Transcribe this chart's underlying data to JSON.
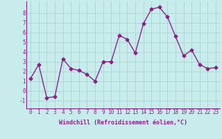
{
  "x": [
    0,
    1,
    2,
    3,
    4,
    5,
    6,
    7,
    8,
    9,
    10,
    11,
    12,
    13,
    14,
    15,
    16,
    17,
    18,
    19,
    20,
    21,
    22,
    23
  ],
  "y": [
    1.3,
    2.7,
    -0.7,
    -0.6,
    3.3,
    2.3,
    2.1,
    1.7,
    1.0,
    3.0,
    3.0,
    5.7,
    5.3,
    3.9,
    6.9,
    8.4,
    8.6,
    7.6,
    5.6,
    3.6,
    4.2,
    2.7,
    2.3,
    2.4
  ],
  "line_color": "#882288",
  "marker": "D",
  "marker_size": 2.5,
  "bg_color": "#c8ecec",
  "grid_color": "#a8d8d8",
  "xlabel": "Windchill (Refroidissement éolien,°C)",
  "xlabel_color": "#882288",
  "tick_color": "#882288",
  "axis_color": "#882288",
  "ylim": [
    -1.8,
    9.2
  ],
  "xlim": [
    -0.5,
    23.5
  ],
  "yticks": [
    -1,
    0,
    1,
    2,
    3,
    4,
    5,
    6,
    7,
    8
  ],
  "xticks": [
    0,
    1,
    2,
    3,
    4,
    5,
    6,
    7,
    8,
    9,
    10,
    11,
    12,
    13,
    14,
    15,
    16,
    17,
    18,
    19,
    20,
    21,
    22,
    23
  ],
  "tick_fontsize": 5.5,
  "xlabel_fontsize": 6.0,
  "linewidth": 1.0
}
